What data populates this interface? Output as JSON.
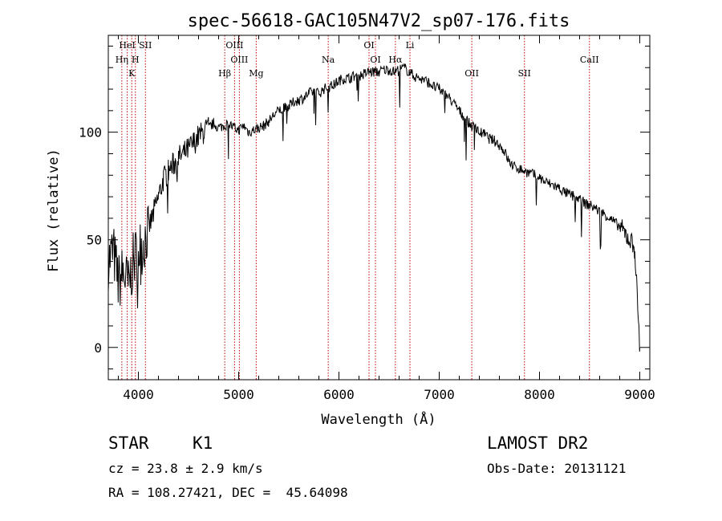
{
  "chart_data": {
    "type": "line",
    "title": "spec-56618-GAC105N47V2_sp07-176.fits",
    "xlabel": "Wavelength (Å)",
    "ylabel": "Flux (relative)",
    "xlim": [
      3700,
      9100
    ],
    "ylim": [
      -15,
      145
    ],
    "xticks": [
      4000,
      5000,
      6000,
      7000,
      8000,
      9000
    ],
    "yticks": [
      0,
      50,
      100
    ],
    "xtick_labels": [
      "4000",
      "5000",
      "6000",
      "7000",
      "8000",
      "9000"
    ],
    "ytick_labels": [
      "0",
      "50",
      "100"
    ],
    "grid": false,
    "series": [
      {
        "x": [
          3700,
          3750,
          3800,
          3850,
          3900,
          3950,
          4000,
          4050,
          4100,
          4150,
          4200,
          4250,
          4300,
          4350,
          4400,
          4450,
          4500,
          4550,
          4600,
          4650,
          4700,
          4750,
          4800,
          4850,
          4900,
          4950,
          5000,
          5050,
          5100,
          5150,
          5200,
          5250,
          5300,
          5350,
          5400,
          5450,
          5500,
          5550,
          5600,
          5650,
          5700,
          5750,
          5800,
          5850,
          5900,
          5950,
          6000,
          6050,
          6100,
          6150,
          6200,
          6250,
          6300,
          6350,
          6400,
          6450,
          6500,
          6550,
          6600,
          6650,
          6700,
          6750,
          6800,
          6850,
          6900,
          6950,
          7000,
          7050,
          7100,
          7150,
          7200,
          7250,
          7300,
          7350,
          7400,
          7450,
          7500,
          7550,
          7600,
          7650,
          7700,
          7750,
          7800,
          7850,
          7900,
          7950,
          8000,
          8050,
          8100,
          8150,
          8200,
          8250,
          8300,
          8350,
          8400,
          8450,
          8500,
          8550,
          8600,
          8650,
          8700,
          8750,
          8800,
          8850,
          8900,
          8950,
          9000
        ],
        "y": [
          40,
          45,
          30,
          35,
          28,
          40,
          45,
          48,
          55,
          62,
          70,
          78,
          82,
          85,
          88,
          90,
          92,
          95,
          98,
          100,
          102,
          104,
          102,
          103,
          104,
          102,
          101,
          103,
          100,
          101,
          102,
          103,
          105,
          108,
          110,
          111,
          112,
          114,
          115,
          116,
          118,
          119,
          118,
          120,
          121,
          122,
          124,
          125,
          125,
          126,
          126,
          127,
          128,
          128,
          128,
          129,
          129,
          128,
          129,
          130,
          128,
          126,
          125,
          124,
          123,
          121,
          120,
          118,
          116,
          113,
          110,
          107,
          104,
          102,
          100,
          99,
          97,
          96,
          94,
          91,
          86,
          84,
          83,
          82,
          81,
          80,
          79,
          77,
          76,
          75,
          74,
          72,
          71,
          70,
          69,
          67,
          66,
          65,
          63,
          62,
          60,
          58,
          56,
          53,
          50,
          46,
          0
        ]
      }
    ],
    "lines": [
      {
        "label": "HeI",
        "x": 3889,
        "row": 1
      },
      {
        "label": "SII",
        "x": 4070,
        "row": 1
      },
      {
        "label": "Hη",
        "x": 3835,
        "row": 2
      },
      {
        "label": "H",
        "x": 3970,
        "row": 2
      },
      {
        "label": "K",
        "x": 3934,
        "row": 3
      },
      {
        "label": "OIII",
        "x": 4959,
        "row": 1
      },
      {
        "label": "OIII",
        "x": 5007,
        "row": 2
      },
      {
        "label": "Hβ",
        "x": 4861,
        "row": 3
      },
      {
        "label": "Mg",
        "x": 5175,
        "row": 3
      },
      {
        "label": "Na",
        "x": 5893,
        "row": 2
      },
      {
        "label": "OI",
        "x": 6300,
        "row": 1
      },
      {
        "label": "OI",
        "x": 6364,
        "row": 2
      },
      {
        "label": "Hα",
        "x": 6563,
        "row": 2
      },
      {
        "label": "Li",
        "x": 6708,
        "row": 1
      },
      {
        "label": "OII",
        "x": 7325,
        "row": 3
      },
      {
        "label": "SII",
        "x": 7850,
        "row": 3
      },
      {
        "label": "CaII",
        "x": 8498,
        "row": 2
      }
    ]
  },
  "info": {
    "object_class": "STAR",
    "subclass": "K1",
    "survey": "LAMOST DR2",
    "cz": "cz = 23.8 ± 2.9 km/s",
    "obs_date": "Obs-Date: 20131121",
    "radec": "RA = 108.27421, DEC =  45.64098"
  },
  "colors": {
    "spectrum": "#000000",
    "line_markers": "#c00000",
    "axes": "#000000"
  }
}
